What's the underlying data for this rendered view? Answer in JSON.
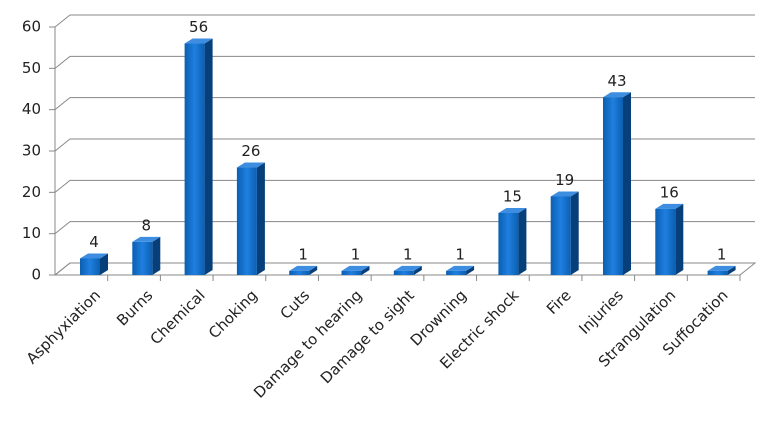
{
  "chart_data": {
    "type": "bar",
    "categories": [
      "Asphyxiation",
      "Burns",
      "Chemical",
      "Choking",
      "Cuts",
      "Damage to hearing",
      "Damage to sight",
      "Drowning",
      "Electric shock",
      "Fire",
      "Injuries",
      "Strangulation",
      "Suffocation"
    ],
    "values": [
      4,
      8,
      56,
      26,
      1,
      1,
      1,
      1,
      15,
      19,
      43,
      16,
      1
    ],
    "color": "#0a6ccb",
    "ylim": [
      0,
      60
    ],
    "yticks": [
      0,
      10,
      20,
      30,
      40,
      50,
      60
    ],
    "grid": true
  }
}
